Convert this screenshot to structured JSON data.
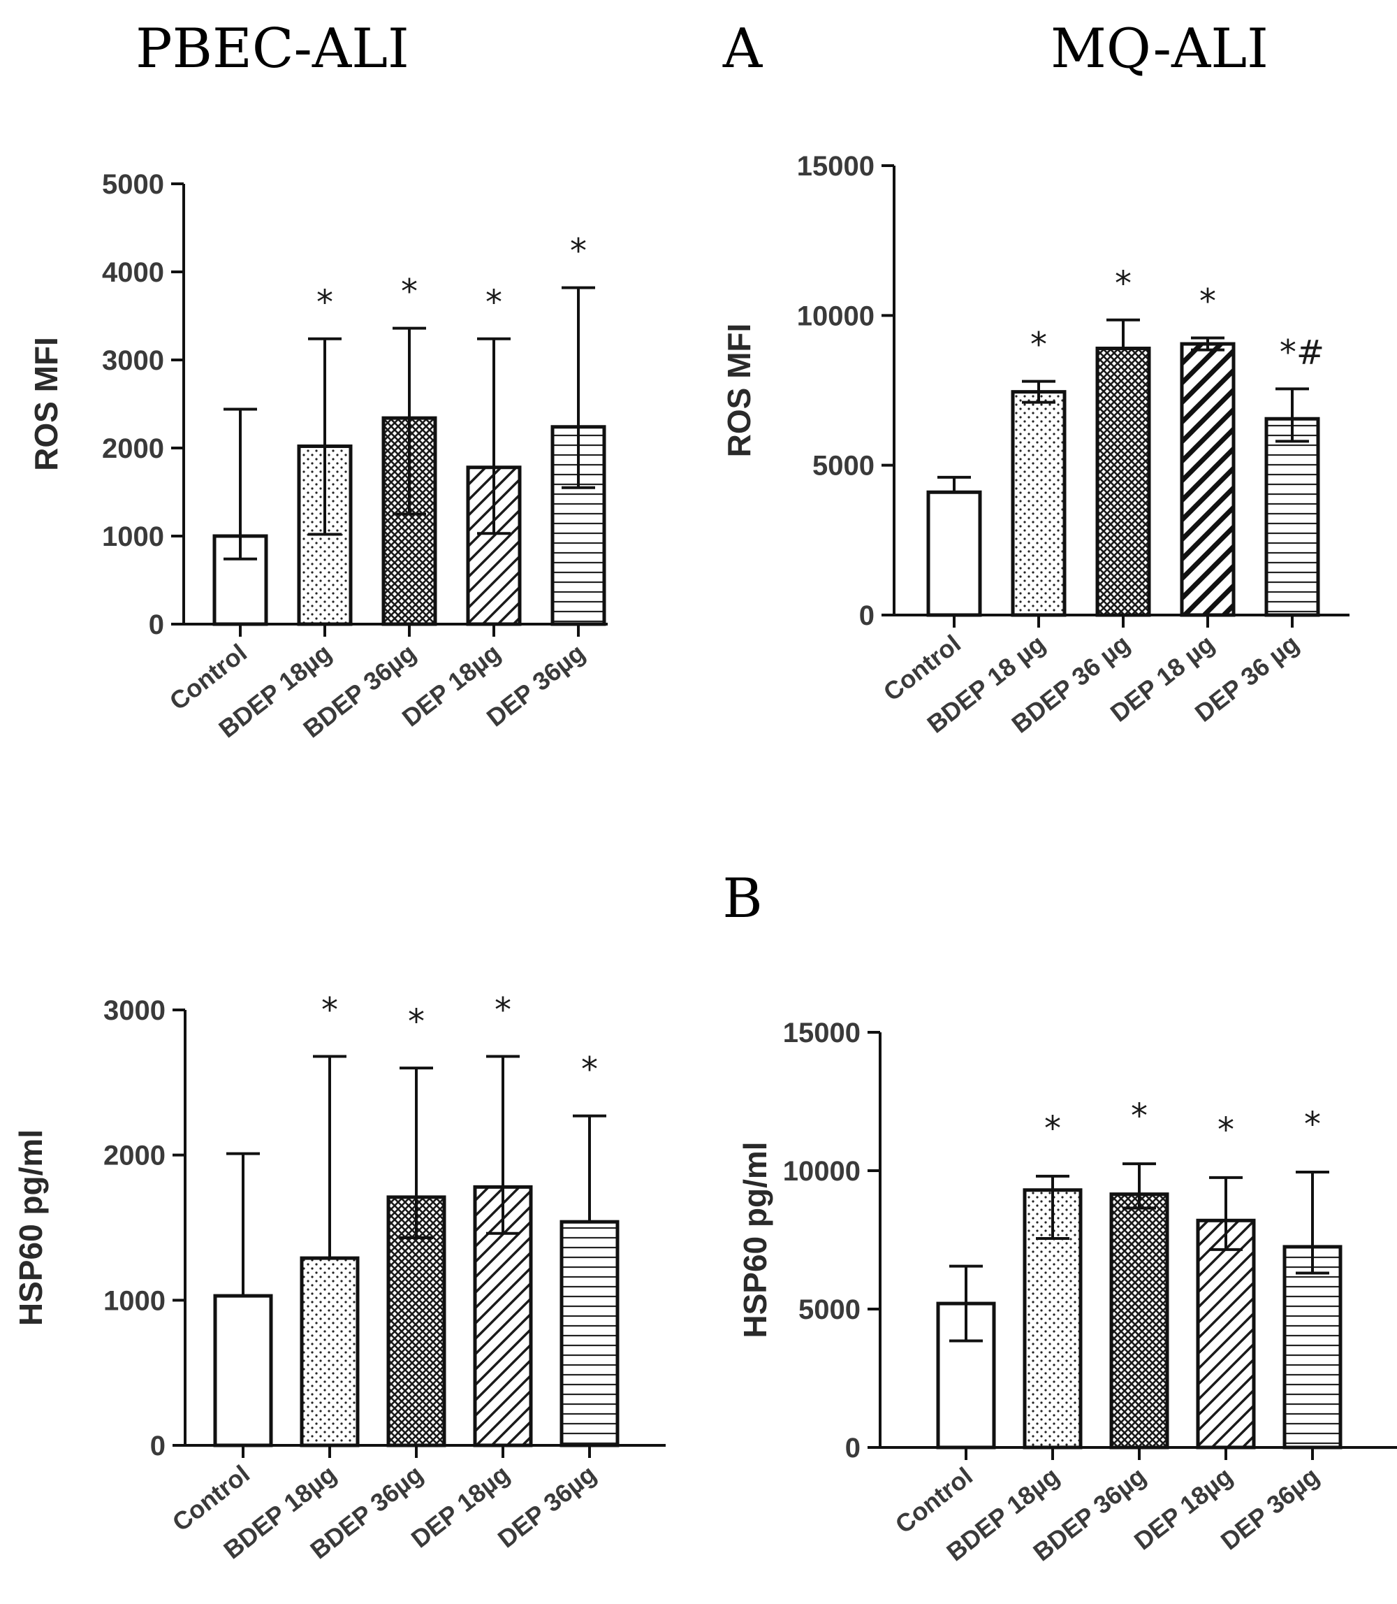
{
  "headings": {
    "left": "PBEC-ALI",
    "mid_a": "A",
    "right": "MQ-ALI",
    "mid_b": "B"
  },
  "chart_data": [
    {
      "id": "A-left",
      "type": "bar",
      "title": "PBEC-ALI",
      "ylabel": "ROS MFI",
      "xlabel": "",
      "ylim": [
        0,
        5000
      ],
      "yticks": [
        0,
        1000,
        2000,
        3000,
        4000,
        5000
      ],
      "ytick_labels": [
        "0",
        "1000",
        "2000",
        "3000",
        "4000",
        "5000"
      ],
      "categories": [
        "Control",
        "BDEP 18µg",
        "BDEP 36µg",
        "DEP 18µg",
        "DEP 36µg"
      ],
      "values": [
        1000,
        2020,
        2340,
        1780,
        2240
      ],
      "err_upper": [
        2440,
        3240,
        3360,
        3240,
        3820
      ],
      "err_lower": [
        740,
        1020,
        1250,
        1030,
        1550
      ],
      "annotations": [
        "",
        "*",
        "*",
        "*",
        "*"
      ]
    },
    {
      "id": "A-right",
      "type": "bar",
      "title": "MQ-ALI",
      "ylabel": "ROS MFI",
      "xlabel": "",
      "ylim": [
        0,
        15000
      ],
      "yticks": [
        0,
        5000,
        10000,
        15000
      ],
      "ytick_labels": [
        "0",
        "5000",
        "10000",
        "15000"
      ],
      "categories": [
        "Control",
        "BDEP 18 µg",
        "BDEP 36 µg",
        "DEP 18 µg",
        "DEP 36 µg"
      ],
      "values": [
        4100,
        7450,
        8900,
        9050,
        6550
      ],
      "err_upper": [
        4600,
        7800,
        9850,
        9250,
        7550
      ],
      "err_lower": [
        4100,
        7100,
        8900,
        8850,
        5800
      ],
      "annotations": [
        "",
        "*",
        "*",
        "*",
        "*#"
      ]
    },
    {
      "id": "B-left",
      "type": "bar",
      "ylabel": "HSP60 pg/ml",
      "xlabel": "",
      "ylim": [
        0,
        3000
      ],
      "yticks": [
        0,
        1000,
        2000,
        3000
      ],
      "ytick_labels": [
        "0",
        "1000",
        "2000",
        "3000"
      ],
      "categories": [
        "Control",
        "BDEP 18µg",
        "BDEP 36µg",
        "DEP 18µg",
        "DEP 36µg"
      ],
      "values": [
        1030,
        1290,
        1710,
        1780,
        1540
      ],
      "err_upper": [
        2010,
        2680,
        2600,
        2680,
        2270
      ],
      "err_lower": [
        1030,
        1290,
        1430,
        1460,
        1540
      ],
      "annotations": [
        "",
        "*",
        "*",
        "*",
        "*"
      ]
    },
    {
      "id": "B-right",
      "type": "bar",
      "ylabel": "HSP60 pg/ml",
      "xlabel": "",
      "ylim": [
        0,
        15000
      ],
      "yticks": [
        0,
        5000,
        10000,
        15000
      ],
      "ytick_labels": [
        "0",
        "5000",
        "10000",
        "15000"
      ],
      "categories": [
        "Control",
        "BDEP 18µg",
        "BDEP 36µg",
        "DEP 18µg",
        "DEP 36µg"
      ],
      "values": [
        5200,
        9300,
        9150,
        8200,
        7250
      ],
      "err_upper": [
        6550,
        9800,
        10250,
        9750,
        9950
      ],
      "err_lower": [
        3850,
        7550,
        8650,
        7150,
        6300
      ],
      "annotations": [
        "",
        "*",
        "*",
        "*",
        "*"
      ]
    }
  ]
}
